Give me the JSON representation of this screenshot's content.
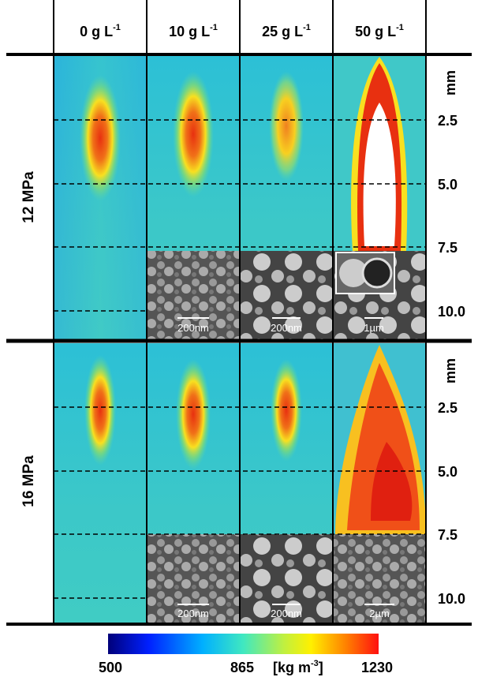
{
  "header": {
    "columns": [
      {
        "label": "0 g L",
        "sup": "-1"
      },
      {
        "label": "10 g L",
        "sup": "-1"
      },
      {
        "label": "25 g L",
        "sup": "-1"
      },
      {
        "label": "50 g L",
        "sup": "-1"
      }
    ]
  },
  "rows": [
    {
      "label": "12 MPa",
      "axis_unit": "mm",
      "ticks": [
        "2.5",
        "5.0",
        "7.5",
        "10.0"
      ],
      "scale_bars": [
        "200nm",
        "200nm",
        "1µm"
      ]
    },
    {
      "label": "16 MPa",
      "axis_unit": "mm",
      "ticks": [
        "2.5",
        "5.0",
        "7.5",
        "10.0"
      ],
      "scale_bars": [
        "200nm",
        "200nm",
        "2µm"
      ]
    }
  ],
  "colorbar": {
    "min": "500",
    "mid": "865",
    "max": "1230",
    "unit": {
      "text": "[kg m",
      "sup": "-3",
      "close": "]"
    }
  }
}
